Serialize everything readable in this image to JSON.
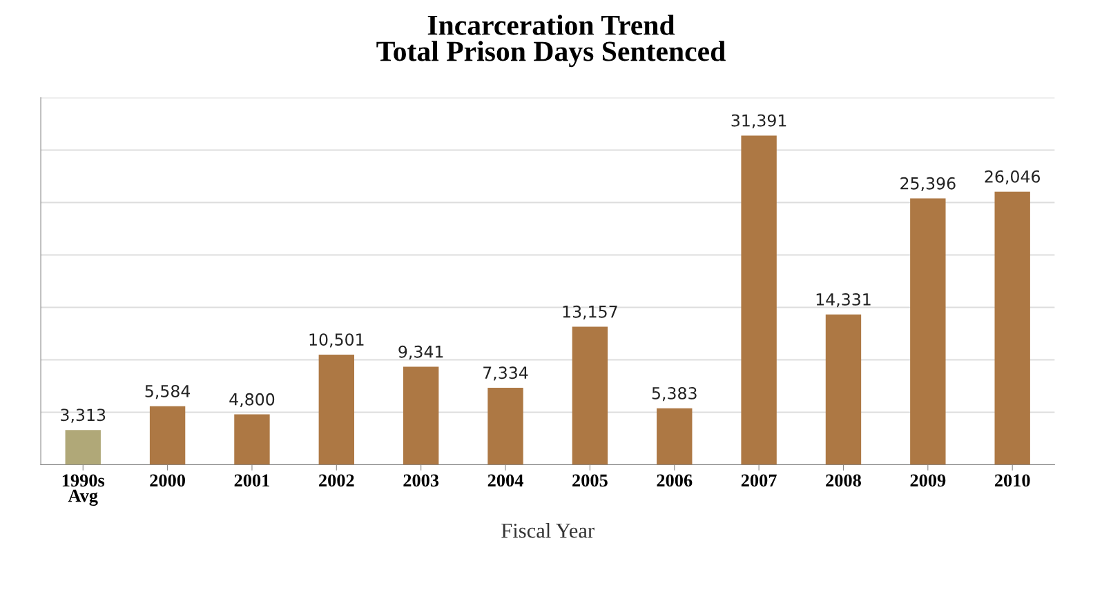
{
  "chart_data": {
    "type": "bar",
    "title": "Incarceration Trend\nTotal Prison Days Sentenced",
    "xlabel": "Fiscal Year",
    "categories": [
      "1990s\nAvg",
      "2000",
      "2001",
      "2002",
      "2003",
      "2004",
      "2005",
      "2006",
      "2007",
      "2008",
      "2009",
      "2010"
    ],
    "values": [
      3313,
      5584,
      4800,
      10501,
      9341,
      7334,
      13157,
      5383,
      31391,
      14331,
      25396,
      26046
    ],
    "colors": [
      "#b0a878",
      "#ad7844",
      "#ad7844",
      "#ad7844",
      "#ad7844",
      "#ad7844",
      "#ad7844",
      "#ad7844",
      "#ad7844",
      "#ad7844",
      "#ad7844",
      "#ad7844"
    ],
    "value_labels": [
      "3,313",
      "5,584",
      "4,800",
      "10,501",
      "9,341",
      "7,334",
      "13,157",
      "5,383",
      "31,391",
      "14,331",
      "25,396",
      "26,046"
    ],
    "ylim": [
      0,
      35000
    ],
    "yticks": [
      {
        "value": 0,
        "label": null
      },
      {
        "value": 5000,
        "label": null
      },
      {
        "value": 10000,
        "label": null
      },
      {
        "value": 15000,
        "label": null
      },
      {
        "value": 20000,
        "label": null
      },
      {
        "value": 25000,
        "label": null
      },
      {
        "value": 30000,
        "label": null
      },
      {
        "value": 35000,
        "label": null
      }
    ],
    "grid": "y",
    "tick_labels": "x"
  }
}
